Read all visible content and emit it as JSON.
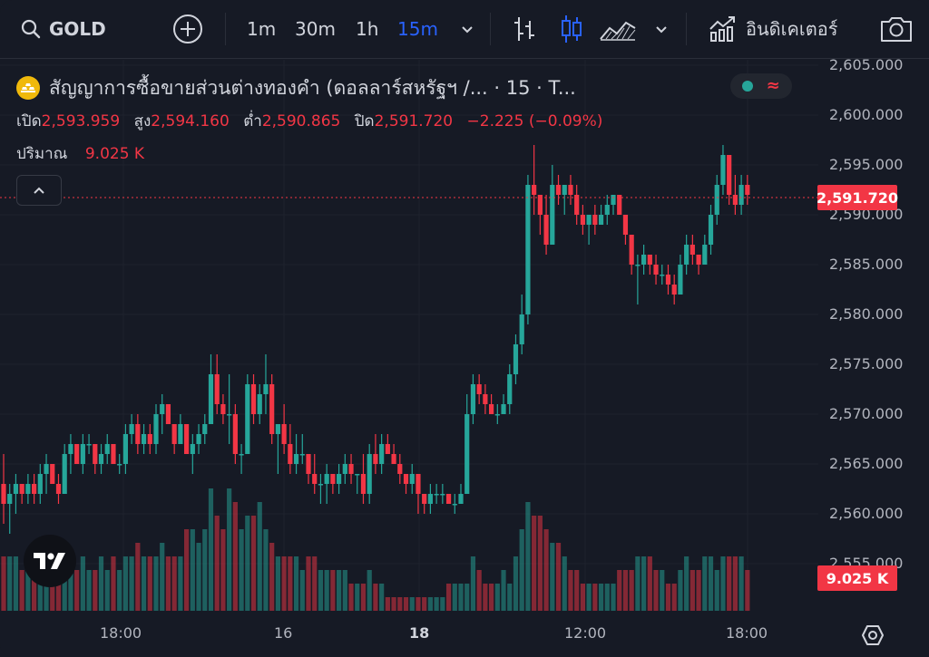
{
  "toolbar": {
    "symbol": "GOLD",
    "intervals": [
      "1m",
      "30m",
      "1h",
      "15m"
    ],
    "active_interval": "15m",
    "indicators_label": "อินดิเคเตอร์",
    "icons": [
      "search-icon",
      "add-compare-icon",
      "chevron-down-icon",
      "bar-style-icon",
      "candle-style-icon",
      "area-style-icon",
      "chevron-down-icon",
      "indicators-icon",
      "camera-icon"
    ]
  },
  "legend": {
    "title": "สัญญาการซื้อขายส่วนต่างทองคำ (ดอลลาร์สหรัฐฯ /...  · 15 · T...",
    "open_label": "เปิด",
    "open": "2,593.959",
    "high_label": "สูง",
    "high": "2,594.160",
    "low_label": "ต่ำ",
    "low": "2,590.865",
    "close_label": "ปิด",
    "close": "2,591.720",
    "change": "−2.225 (−0.09%)",
    "volume_label": "ปริมาณ",
    "volume": "9.025 K"
  },
  "price_axis": [
    "2,605.000",
    "2,600.000",
    "2,595.000",
    "2,590.000",
    "2,585.000",
    "2,580.000",
    "2,575.000",
    "2,570.000",
    "2,565.000",
    "2,560.000",
    "2,555.000"
  ],
  "last_price": "2,591.720",
  "last_volume": "9.025 K",
  "time_axis": [
    "18:00",
    "16",
    "18",
    "12:00",
    "18:00"
  ],
  "colors": {
    "up": "#26a69a",
    "down": "#f23645",
    "accent": "#2962ff",
    "background": "#161a25"
  },
  "chart_data": {
    "type": "candlestick",
    "ohlc": [
      [
        2563,
        2566,
        2559,
        2561
      ],
      [
        2561,
        2563,
        2558,
        2562
      ],
      [
        2562,
        2564,
        2560,
        2563
      ],
      [
        2563,
        2563,
        2561,
        2562
      ],
      [
        2562,
        2564,
        2561,
        2563
      ],
      [
        2563,
        2564,
        2561,
        2562
      ],
      [
        2562,
        2565,
        2561,
        2564
      ],
      [
        2564,
        2566,
        2562,
        2565
      ],
      [
        2565,
        2565,
        2563,
        2563
      ],
      [
        2563,
        2564,
        2561,
        2562
      ],
      [
        2562,
        2567,
        2562,
        2566
      ],
      [
        2566,
        2568,
        2564,
        2567
      ],
      [
        2567,
        2567,
        2565,
        2565
      ],
      [
        2565,
        2568,
        2564,
        2567
      ],
      [
        2567,
        2568,
        2566,
        2567
      ],
      [
        2567,
        2567,
        2564,
        2565
      ],
      [
        2565,
        2567,
        2564,
        2566
      ],
      [
        2566,
        2568,
        2565,
        2567
      ],
      [
        2567,
        2567,
        2565,
        2565
      ],
      [
        2565,
        2566,
        2564,
        2565
      ],
      [
        2565,
        2569,
        2564,
        2568
      ],
      [
        2568,
        2570,
        2567,
        2569
      ],
      [
        2569,
        2570,
        2566,
        2567
      ],
      [
        2567,
        2569,
        2566,
        2568
      ],
      [
        2568,
        2569,
        2566,
        2567
      ],
      [
        2567,
        2571,
        2566,
        2570
      ],
      [
        2570,
        2572,
        2568,
        2571
      ],
      [
        2571,
        2571,
        2569,
        2569
      ],
      [
        2569,
        2569,
        2566,
        2567
      ],
      [
        2567,
        2570,
        2567,
        2569
      ],
      [
        2569,
        2569,
        2566,
        2566
      ],
      [
        2566,
        2568,
        2564,
        2567
      ],
      [
        2567,
        2569,
        2566,
        2568
      ],
      [
        2568,
        2570,
        2567,
        2569
      ],
      [
        2569,
        2576,
        2569,
        2574
      ],
      [
        2574,
        2576,
        2570,
        2571
      ],
      [
        2571,
        2572,
        2569,
        2570
      ],
      [
        2570,
        2574,
        2567,
        2570
      ],
      [
        2570,
        2571,
        2565,
        2566
      ],
      [
        2566,
        2567,
        2564,
        2566
      ],
      [
        2566,
        2574,
        2566,
        2573
      ],
      [
        2573,
        2574,
        2569,
        2570
      ],
      [
        2570,
        2573,
        2569,
        2572
      ],
      [
        2572,
        2576,
        2570,
        2573
      ],
      [
        2573,
        2574,
        2567,
        2568
      ],
      [
        2568,
        2569,
        2564,
        2569
      ],
      [
        2569,
        2571,
        2566,
        2567
      ],
      [
        2567,
        2569,
        2564,
        2565
      ],
      [
        2565,
        2568,
        2564,
        2566
      ],
      [
        2566,
        2568,
        2565,
        2566
      ],
      [
        2566,
        2566,
        2563,
        2564
      ],
      [
        2564,
        2566,
        2562,
        2563
      ],
      [
        2563,
        2564,
        2561,
        2563
      ],
      [
        2563,
        2565,
        2561,
        2564
      ],
      [
        2564,
        2564,
        2562,
        2563
      ],
      [
        2563,
        2565,
        2562,
        2564
      ],
      [
        2564,
        2566,
        2563,
        2565
      ],
      [
        2565,
        2566,
        2563,
        2564
      ],
      [
        2564,
        2564,
        2562,
        2564
      ],
      [
        2564,
        2566,
        2561,
        2562
      ],
      [
        2562,
        2567,
        2561,
        2566
      ],
      [
        2566,
        2568,
        2564,
        2565
      ],
      [
        2565,
        2568,
        2564,
        2567
      ],
      [
        2567,
        2568,
        2566,
        2566
      ],
      [
        2566,
        2567,
        2565,
        2565
      ],
      [
        2565,
        2566,
        2563,
        2564
      ],
      [
        2564,
        2564,
        2562,
        2563
      ],
      [
        2563,
        2565,
        2562,
        2564
      ],
      [
        2564,
        2564,
        2560,
        2562
      ],
      [
        2562,
        2562,
        2560,
        2561
      ],
      [
        2561,
        2563,
        2560,
        2562
      ],
      [
        2562,
        2563,
        2561,
        2562
      ],
      [
        2562,
        2563,
        2561,
        2562
      ],
      [
        2562,
        2562,
        2561,
        2561
      ],
      [
        2561,
        2562,
        2560,
        2561
      ],
      [
        2561,
        2563,
        2561,
        2562
      ],
      [
        2562,
        2572,
        2562,
        2570
      ],
      [
        2570,
        2574,
        2569,
        2573
      ],
      [
        2573,
        2574,
        2571,
        2572
      ],
      [
        2572,
        2573,
        2570,
        2571
      ],
      [
        2571,
        2572,
        2570,
        2570
      ],
      [
        2570,
        2571,
        2569,
        2570
      ],
      [
        2570,
        2572,
        2570,
        2571
      ],
      [
        2571,
        2575,
        2570,
        2574
      ],
      [
        2574,
        2578,
        2573,
        2577
      ],
      [
        2577,
        2582,
        2576,
        2580
      ],
      [
        2580,
        2594,
        2579,
        2593
      ],
      [
        2593,
        2597,
        2590,
        2592
      ],
      [
        2592,
        2592,
        2588,
        2590
      ],
      [
        2590,
        2592,
        2586,
        2587
      ],
      [
        2587,
        2595,
        2587,
        2593
      ],
      [
        2593,
        2594,
        2591,
        2592
      ],
      [
        2592,
        2593,
        2590,
        2593
      ],
      [
        2593,
        2594,
        2591,
        2592
      ],
      [
        2592,
        2593,
        2589,
        2590
      ],
      [
        2590,
        2591,
        2588,
        2589
      ],
      [
        2589,
        2590,
        2587,
        2590
      ],
      [
        2590,
        2591,
        2588,
        2589
      ],
      [
        2589,
        2591,
        2589,
        2590
      ],
      [
        2590,
        2592,
        2589,
        2591
      ],
      [
        2591,
        2592,
        2590,
        2592
      ],
      [
        2592,
        2592,
        2590,
        2590
      ],
      [
        2590,
        2590,
        2587,
        2588
      ],
      [
        2588,
        2588,
        2584,
        2585
      ],
      [
        2585,
        2586,
        2581,
        2585
      ],
      [
        2585,
        2587,
        2584,
        2586
      ],
      [
        2586,
        2586,
        2584,
        2585
      ],
      [
        2585,
        2586,
        2583,
        2584
      ],
      [
        2584,
        2585,
        2583,
        2584
      ],
      [
        2584,
        2585,
        2582,
        2583
      ],
      [
        2583,
        2584,
        2581,
        2582
      ],
      [
        2582,
        2586,
        2582,
        2585
      ],
      [
        2585,
        2588,
        2584,
        2587
      ],
      [
        2587,
        2588,
        2585,
        2586
      ],
      [
        2586,
        2586,
        2584,
        2585
      ],
      [
        2585,
        2588,
        2585,
        2587
      ],
      [
        2587,
        2591,
        2586,
        2590
      ],
      [
        2590,
        2594,
        2589,
        2593
      ],
      [
        2593,
        2597,
        2592,
        2596
      ],
      [
        2596,
        2596,
        2591,
        2592
      ],
      [
        2592,
        2594,
        2590,
        2591
      ],
      [
        2591,
        2594,
        2590,
        2593
      ],
      [
        2593,
        2594,
        2591,
        2592
      ]
    ],
    "volume": [
      4,
      4,
      4,
      3,
      4,
      4,
      4,
      3,
      4,
      4,
      4,
      3,
      3,
      4,
      3,
      3,
      4,
      3,
      4,
      3,
      4,
      4,
      5,
      4,
      4,
      4,
      5,
      4,
      4,
      4,
      6,
      6,
      5,
      6,
      9,
      7,
      6,
      9,
      8,
      6,
      7,
      7,
      8,
      6,
      5,
      4,
      4,
      4,
      4,
      3,
      4,
      4,
      3,
      3,
      3,
      3,
      3,
      2,
      2,
      2,
      3,
      2,
      2,
      1,
      1,
      1,
      1,
      1,
      1,
      1,
      1,
      1,
      1,
      2,
      2,
      2,
      2,
      4,
      3,
      2,
      2,
      2,
      3,
      2,
      4,
      6,
      8,
      7,
      7,
      6,
      5,
      5,
      4,
      3,
      3,
      2,
      2,
      2,
      2,
      2,
      2,
      3,
      3,
      3,
      4,
      4,
      4,
      3,
      3,
      2,
      2,
      3,
      4,
      3,
      3,
      4,
      4,
      3,
      4,
      4,
      4,
      4,
      3
    ]
  }
}
